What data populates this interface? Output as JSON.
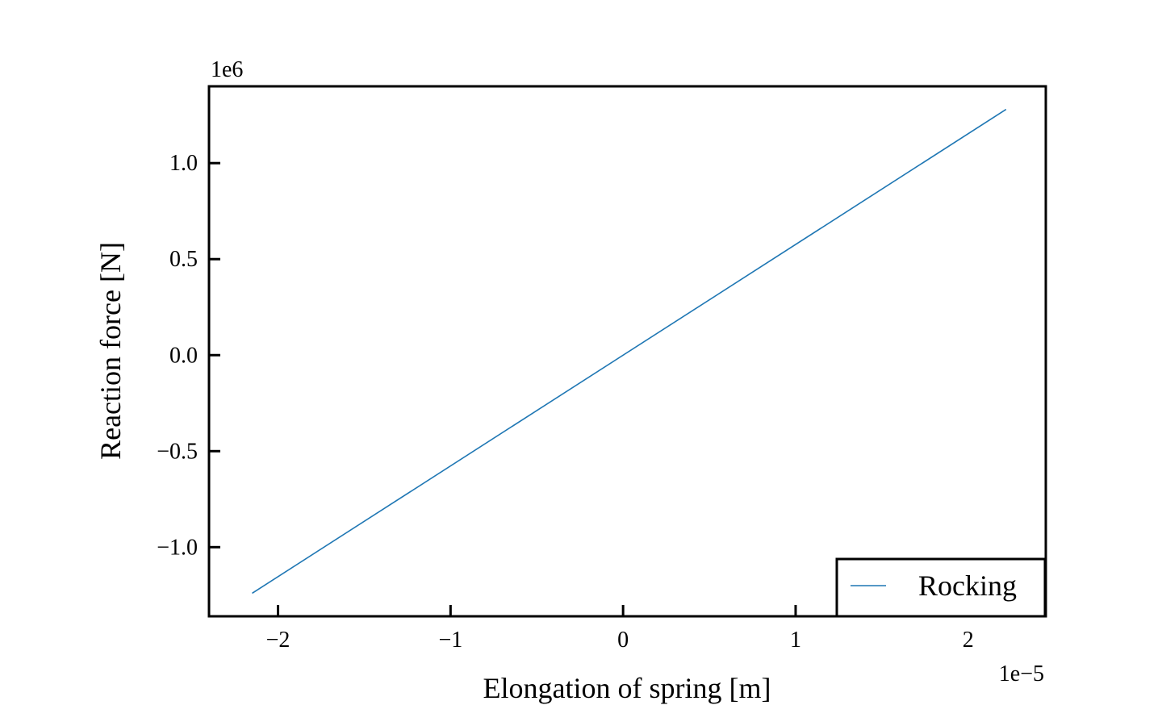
{
  "chart_data": {
    "type": "line",
    "xlabel": "Elongation of spring [m]",
    "ylabel": "Reaction force [N]",
    "x_offset_label": "1e−5",
    "y_offset_label": "1e6",
    "xlim": [
      -2.4,
      2.45
    ],
    "ylim": [
      -1.36,
      1.4
    ],
    "x_ticks": [
      -2,
      -1,
      0,
      1,
      2
    ],
    "x_tick_labels": [
      "−2",
      "−1",
      "0",
      "1",
      "2"
    ],
    "y_ticks": [
      -1.0,
      -0.5,
      0.0,
      0.5,
      1.0
    ],
    "y_tick_labels": [
      "−1.0",
      "−0.5",
      "0.0",
      "0.5",
      "1.0"
    ],
    "grid": false,
    "legend_position": "bottom-right",
    "series": [
      {
        "name": "Rocking",
        "color": "#1f77b4",
        "x": [
          -2.15,
          2.22
        ],
        "y": [
          -1.24,
          1.28
        ]
      }
    ]
  }
}
